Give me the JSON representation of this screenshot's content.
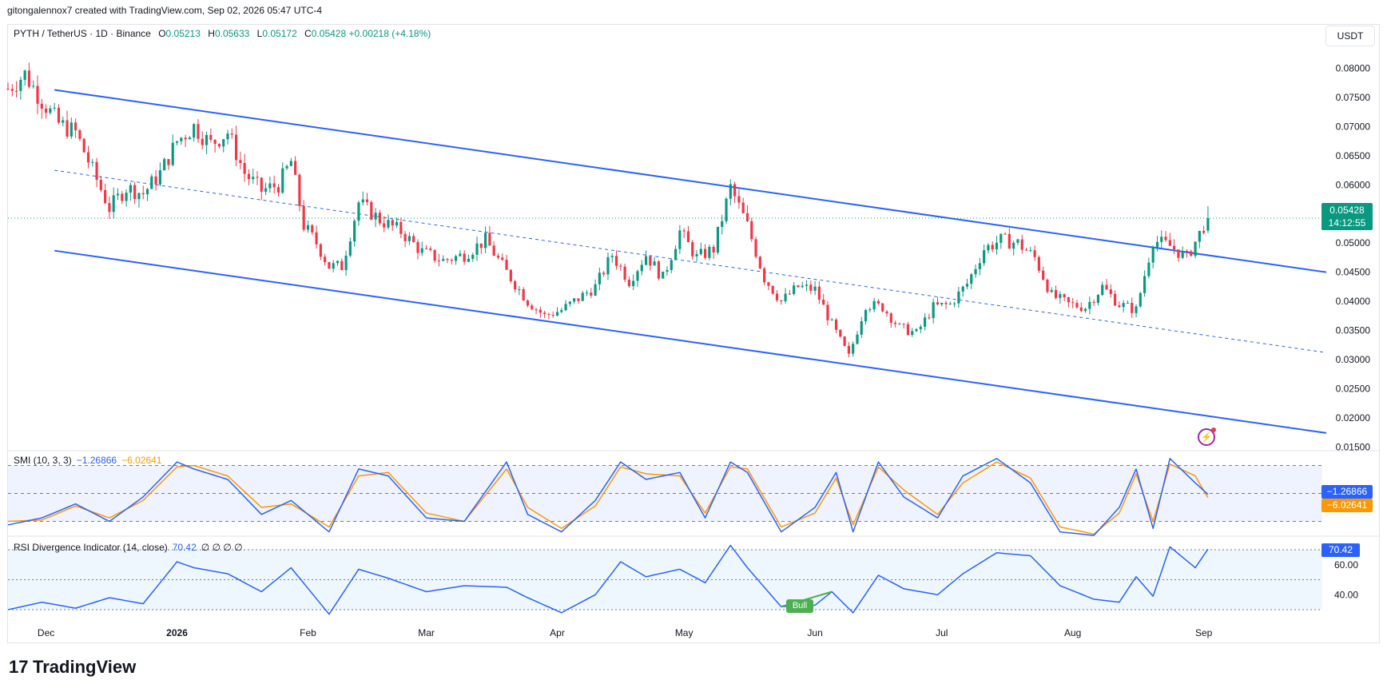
{
  "header": {
    "caption": "gitongalennox7 created with TradingView.com, Sep 02, 2026 05:47 UTC-4",
    "symbol": "PYTH / TetherUS · 1D · Binance",
    "open_label": "O",
    "open": "0.05213",
    "high_label": "H",
    "high": "0.05633",
    "low_label": "L",
    "low": "0.05172",
    "close_label": "C",
    "close": "0.05428",
    "change": "+0.00218 (+4.18%)",
    "currency": "USDT"
  },
  "price_tag": {
    "price": "0.05428",
    "countdown": "14:12:55"
  },
  "smi": {
    "label": "SMI (10, 3, 3)",
    "value1": "−1.26866",
    "value2": "−6.02641"
  },
  "rsi": {
    "label": "RSI Divergence Indicator (14, close)",
    "value": "70.42",
    "extras": "∅ ∅ ∅ ∅",
    "bull_label": "Bull"
  },
  "brand": {
    "name": "TradingView",
    "mark": "17"
  },
  "colors": {
    "up": "#089981",
    "down": "#f23645",
    "channel": "#2962ff",
    "smi_line": "#2962ff",
    "smi_signal": "#ff9800",
    "rsi_line": "#2962ff",
    "bull": "#4caf50"
  },
  "chart_data": [
    {
      "type": "candlestick",
      "title": "PYTH / TetherUS · 1D · Binance",
      "ylim": [
        0.0145,
        0.0835
      ],
      "y_ticks": [
        "0.08000",
        "0.07500",
        "0.07000",
        "0.06500",
        "0.06000",
        "0.05500",
        "0.05000",
        "0.04500",
        "0.04000",
        "0.03500",
        "0.03000",
        "0.02500",
        "0.02000",
        "0.01500"
      ],
      "x_ticks": [
        "Dec",
        "2026",
        "Feb",
        "Mar",
        "Apr",
        "May",
        "Jun",
        "Jul",
        "Aug",
        "Sep"
      ],
      "x_range": [
        "2025-11-22",
        "2026-09-30"
      ],
      "ohlc_anchors": [
        [
          "2025-11-22",
          0.0765
        ],
        [
          "2025-11-26",
          0.079
        ],
        [
          "2025-11-30",
          0.0745
        ],
        [
          "2025-12-04",
          0.0705
        ],
        [
          "2025-12-08",
          0.069
        ],
        [
          "2025-12-12",
          0.0625
        ],
        [
          "2025-12-16",
          0.056
        ],
        [
          "2025-12-20",
          0.0595
        ],
        [
          "2025-12-24",
          0.0585
        ],
        [
          "2025-12-28",
          0.062
        ],
        [
          "2026-01-01",
          0.0675
        ],
        [
          "2026-01-05",
          0.07
        ],
        [
          "2026-01-09",
          0.067
        ],
        [
          "2026-01-13",
          0.069
        ],
        [
          "2026-01-17",
          0.062
        ],
        [
          "2026-01-21",
          0.059
        ],
        [
          "2026-01-25",
          0.06
        ],
        [
          "2026-01-28",
          0.064
        ],
        [
          "2026-01-31",
          0.053
        ],
        [
          "2026-02-03",
          0.05
        ],
        [
          "2026-02-06",
          0.046
        ],
        [
          "2026-02-09",
          0.046
        ],
        [
          "2026-02-13",
          0.057
        ],
        [
          "2026-02-18",
          0.054
        ],
        [
          "2026-02-23",
          0.052
        ],
        [
          "2026-02-28",
          0.0485
        ],
        [
          "2026-03-05",
          0.047
        ],
        [
          "2026-03-10",
          0.048
        ],
        [
          "2026-03-15",
          0.0505
        ],
        [
          "2026-03-20",
          0.045
        ],
        [
          "2026-03-25",
          0.04
        ],
        [
          "2026-03-29",
          0.0375
        ],
        [
          "2026-04-02",
          0.0385
        ],
        [
          "2026-04-06",
          0.0405
        ],
        [
          "2026-04-10",
          0.0425
        ],
        [
          "2026-04-14",
          0.048
        ],
        [
          "2026-04-18",
          0.0435
        ],
        [
          "2026-04-22",
          0.048
        ],
        [
          "2026-04-26",
          0.044
        ],
        [
          "2026-04-30",
          0.052
        ],
        [
          "2026-05-04",
          0.0475
        ],
        [
          "2026-05-08",
          0.049
        ],
        [
          "2026-05-12",
          0.0595
        ],
        [
          "2026-05-16",
          0.053
        ],
        [
          "2026-05-20",
          0.044
        ],
        [
          "2026-05-24",
          0.04
        ],
        [
          "2026-05-28",
          0.0425
        ],
        [
          "2026-06-01",
          0.042
        ],
        [
          "2026-06-05",
          0.036
        ],
        [
          "2026-06-09",
          0.0305
        ],
        [
          "2026-06-13",
          0.0395
        ],
        [
          "2026-06-17",
          0.039
        ],
        [
          "2026-06-21",
          0.0355
        ],
        [
          "2026-06-25",
          0.0345
        ],
        [
          "2026-06-29",
          0.039
        ],
        [
          "2026-07-03",
          0.0395
        ],
        [
          "2026-07-07",
          0.043
        ],
        [
          "2026-07-11",
          0.049
        ],
        [
          "2026-07-15",
          0.0505
        ],
        [
          "2026-07-19",
          0.05
        ],
        [
          "2026-07-23",
          0.0475
        ],
        [
          "2026-07-27",
          0.041
        ],
        [
          "2026-07-31",
          0.0395
        ],
        [
          "2026-08-04",
          0.039
        ],
        [
          "2026-08-08",
          0.0425
        ],
        [
          "2026-08-12",
          0.0395
        ],
        [
          "2026-08-16",
          0.0385
        ],
        [
          "2026-08-20",
          0.0505
        ],
        [
          "2026-08-24",
          0.0495
        ],
        [
          "2026-08-28",
          0.0475
        ],
        [
          "2026-09-02",
          0.0543
        ]
      ],
      "last": {
        "open": 0.05213,
        "high": 0.05633,
        "low": 0.05172,
        "close": 0.05428
      },
      "channel": {
        "upper": [
          [
            "2025-12-03",
            0.0763
          ],
          [
            "2026-09-30",
            0.045
          ]
        ],
        "middle": [
          [
            "2025-12-03",
            0.0625
          ],
          [
            "2026-09-30",
            0.0312
          ]
        ],
        "lower": [
          [
            "2025-12-03",
            0.0487
          ],
          [
            "2026-09-30",
            0.0174
          ]
        ]
      }
    },
    {
      "type": "line",
      "title": "SMI (10, 3, 3)",
      "ylim": [
        -60,
        60
      ],
      "levels": [
        40,
        0,
        -40
      ],
      "series": [
        {
          "name": "SMI",
          "anchors": [
            [
              "2025-11-22",
              -45
            ],
            [
              "2025-11-30",
              -35
            ],
            [
              "2025-12-08",
              -15
            ],
            [
              "2025-12-16",
              -40
            ],
            [
              "2025-12-24",
              -5
            ],
            [
              "2026-01-01",
              45
            ],
            [
              "2026-01-05",
              35
            ],
            [
              "2026-01-13",
              20
            ],
            [
              "2026-01-21",
              -30
            ],
            [
              "2026-01-28",
              -10
            ],
            [
              "2026-02-06",
              -55
            ],
            [
              "2026-02-13",
              35
            ],
            [
              "2026-02-20",
              25
            ],
            [
              "2026-03-01",
              -35
            ],
            [
              "2026-03-10",
              -40
            ],
            [
              "2026-03-20",
              45
            ],
            [
              "2026-03-25",
              -30
            ],
            [
              "2026-04-02",
              -55
            ],
            [
              "2026-04-10",
              -10
            ],
            [
              "2026-04-16",
              45
            ],
            [
              "2026-04-22",
              20
            ],
            [
              "2026-04-30",
              30
            ],
            [
              "2026-05-06",
              -35
            ],
            [
              "2026-05-12",
              45
            ],
            [
              "2026-05-16",
              30
            ],
            [
              "2026-05-24",
              -55
            ],
            [
              "2026-06-01",
              -20
            ],
            [
              "2026-06-06",
              30
            ],
            [
              "2026-06-10",
              -55
            ],
            [
              "2026-06-16",
              45
            ],
            [
              "2026-06-22",
              -5
            ],
            [
              "2026-06-30",
              -35
            ],
            [
              "2026-07-06",
              25
            ],
            [
              "2026-07-14",
              50
            ],
            [
              "2026-07-22",
              15
            ],
            [
              "2026-07-29",
              -55
            ],
            [
              "2026-08-06",
              -60
            ],
            [
              "2026-08-12",
              -20
            ],
            [
              "2026-08-16",
              35
            ],
            [
              "2026-08-20",
              -50
            ],
            [
              "2026-08-24",
              50
            ],
            [
              "2026-08-30",
              15
            ],
            [
              "2026-09-02",
              -1.26866
            ]
          ]
        },
        {
          "name": "Signal",
          "anchors": [
            [
              "2025-11-22",
              -40
            ],
            [
              "2025-11-30",
              -38
            ],
            [
              "2025-12-08",
              -18
            ],
            [
              "2025-12-16",
              -35
            ],
            [
              "2025-12-24",
              -10
            ],
            [
              "2026-01-01",
              38
            ],
            [
              "2026-01-05",
              40
            ],
            [
              "2026-01-13",
              25
            ],
            [
              "2026-01-21",
              -20
            ],
            [
              "2026-01-28",
              -15
            ],
            [
              "2026-02-06",
              -48
            ],
            [
              "2026-02-13",
              25
            ],
            [
              "2026-02-20",
              30
            ],
            [
              "2026-03-01",
              -28
            ],
            [
              "2026-03-10",
              -40
            ],
            [
              "2026-03-20",
              35
            ],
            [
              "2026-03-25",
              -20
            ],
            [
              "2026-04-02",
              -50
            ],
            [
              "2026-04-10",
              -18
            ],
            [
              "2026-04-16",
              38
            ],
            [
              "2026-04-22",
              28
            ],
            [
              "2026-04-30",
              25
            ],
            [
              "2026-05-06",
              -28
            ],
            [
              "2026-05-12",
              38
            ],
            [
              "2026-05-16",
              35
            ],
            [
              "2026-05-24",
              -48
            ],
            [
              "2026-06-01",
              -28
            ],
            [
              "2026-06-06",
              22
            ],
            [
              "2026-06-10",
              -45
            ],
            [
              "2026-06-16",
              38
            ],
            [
              "2026-06-22",
              5
            ],
            [
              "2026-06-30",
              -30
            ],
            [
              "2026-07-06",
              15
            ],
            [
              "2026-07-14",
              45
            ],
            [
              "2026-07-22",
              22
            ],
            [
              "2026-07-29",
              -48
            ],
            [
              "2026-08-06",
              -58
            ],
            [
              "2026-08-12",
              -28
            ],
            [
              "2026-08-16",
              28
            ],
            [
              "2026-08-20",
              -40
            ],
            [
              "2026-08-24",
              42
            ],
            [
              "2026-08-30",
              25
            ],
            [
              "2026-09-02",
              -6.02641
            ]
          ]
        }
      ]
    },
    {
      "type": "line",
      "title": "RSI Divergence Indicator (14, close)",
      "ylim": [
        22,
        78
      ],
      "levels": [
        70,
        50,
        30
      ],
      "y_ticks": [
        "60.00",
        "40.00"
      ],
      "series": [
        {
          "name": "RSI",
          "anchors": [
            [
              "2025-11-22",
              30
            ],
            [
              "2025-11-30",
              35
            ],
            [
              "2025-12-08",
              31
            ],
            [
              "2025-12-16",
              38
            ],
            [
              "2025-12-24",
              34
            ],
            [
              "2026-01-01",
              62
            ],
            [
              "2026-01-05",
              58
            ],
            [
              "2026-01-13",
              54
            ],
            [
              "2026-01-21",
              42
            ],
            [
              "2026-01-28",
              58
            ],
            [
              "2026-02-06",
              27
            ],
            [
              "2026-02-13",
              57
            ],
            [
              "2026-02-20",
              51
            ],
            [
              "2026-03-01",
              42
            ],
            [
              "2026-03-10",
              46
            ],
            [
              "2026-03-20",
              45
            ],
            [
              "2026-03-25",
              38
            ],
            [
              "2026-04-02",
              28
            ],
            [
              "2026-04-10",
              40
            ],
            [
              "2026-04-16",
              62
            ],
            [
              "2026-04-22",
              52
            ],
            [
              "2026-04-30",
              57
            ],
            [
              "2026-05-06",
              48
            ],
            [
              "2026-05-12",
              73
            ],
            [
              "2026-05-16",
              58
            ],
            [
              "2026-05-24",
              32
            ],
            [
              "2026-06-01",
              33
            ],
            [
              "2026-06-05",
              42
            ],
            [
              "2026-06-10",
              28
            ],
            [
              "2026-06-16",
              53
            ],
            [
              "2026-06-22",
              44
            ],
            [
              "2026-06-30",
              40
            ],
            [
              "2026-07-06",
              54
            ],
            [
              "2026-07-14",
              68
            ],
            [
              "2026-07-22",
              66
            ],
            [
              "2026-07-29",
              46
            ],
            [
              "2026-08-06",
              37
            ],
            [
              "2026-08-12",
              35
            ],
            [
              "2026-08-16",
              52
            ],
            [
              "2026-08-20",
              39
            ],
            [
              "2026-08-24",
              72
            ],
            [
              "2026-08-30",
              58
            ],
            [
              "2026-09-02",
              70.42
            ]
          ]
        }
      ]
    }
  ]
}
